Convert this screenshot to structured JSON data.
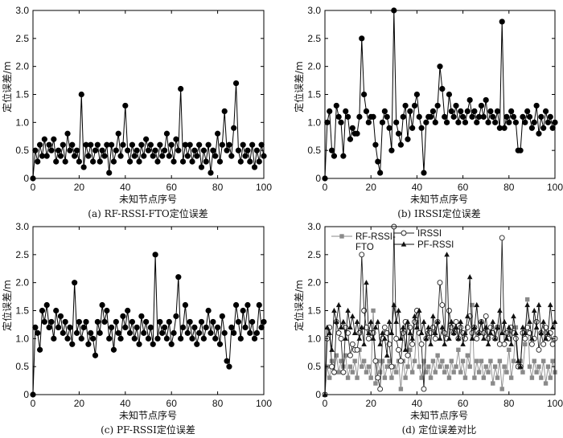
{
  "chart_data": [
    {
      "type": "line",
      "panel": "a",
      "caption": "(a) RF-RSSI-FTO定位误差",
      "xlabel": "未知节点序号",
      "ylabel": "定位误差/m",
      "xlim": [
        0,
        100
      ],
      "ylim": [
        0,
        3.0
      ],
      "xticks": [
        "0",
        "20",
        "40",
        "60",
        "80",
        "100"
      ],
      "yticks": [
        "0",
        "0.5",
        "1.0",
        "1.5",
        "2.0",
        "2.5",
        "3.0"
      ],
      "series": [
        {
          "name": "RF-RSSI-FTO",
          "marker": "filled-circle",
          "x": [
            0,
            1,
            2,
            3,
            4,
            5,
            6,
            7,
            8,
            9,
            10,
            11,
            12,
            13,
            14,
            15,
            16,
            17,
            18,
            19,
            20,
            21,
            22,
            23,
            24,
            25,
            26,
            27,
            28,
            29,
            30,
            31,
            32,
            33,
            34,
            35,
            36,
            37,
            38,
            39,
            40,
            41,
            42,
            43,
            44,
            45,
            46,
            47,
            48,
            49,
            50,
            51,
            52,
            53,
            54,
            55,
            56,
            57,
            58,
            59,
            60,
            61,
            62,
            63,
            64,
            65,
            66,
            67,
            68,
            69,
            70,
            71,
            72,
            73,
            74,
            75,
            76,
            77,
            78,
            79,
            80,
            81,
            82,
            83,
            84,
            85,
            86,
            87,
            88,
            89,
            90,
            91,
            92,
            93,
            94,
            95,
            96,
            97,
            98,
            99,
            100
          ],
          "values": [
            0,
            0.5,
            0.3,
            0.6,
            0.4,
            0.7,
            0.4,
            0.6,
            0.5,
            0.7,
            0.3,
            0.5,
            0.4,
            0.6,
            0.3,
            0.8,
            0.5,
            0.6,
            0.4,
            0.5,
            0.3,
            1.5,
            0.2,
            0.6,
            0.4,
            0.6,
            0.3,
            0.5,
            0.6,
            0.3,
            0.5,
            0.4,
            0.6,
            0.1,
            0.6,
            0.3,
            0.5,
            0.8,
            0.4,
            0.6,
            1.3,
            0.5,
            0.3,
            0.6,
            0.4,
            0.5,
            0.3,
            0.6,
            0.4,
            0.7,
            0.5,
            0.6,
            0.4,
            0.5,
            0.3,
            0.6,
            0.4,
            0.5,
            0.8,
            0.4,
            0.6,
            0.3,
            0.7,
            0.5,
            1.6,
            0.3,
            0.6,
            0.4,
            0.6,
            0.3,
            0.5,
            0.4,
            0.6,
            0.2,
            0.5,
            0.3,
            0.6,
            0.1,
            0.5,
            0.4,
            0.8,
            0.3,
            0.6,
            1.2,
            0.5,
            0.6,
            0.4,
            0.9,
            1.7,
            0.5,
            0.3,
            0.6,
            0.4,
            0.5,
            0.3,
            0.6,
            0.2,
            0.5,
            0.3,
            0.6,
            0.4
          ]
        }
      ]
    },
    {
      "type": "line",
      "panel": "b",
      "caption": "(b) IRSSI定位误差",
      "xlabel": "未知节点序号",
      "ylabel": "定位误差/m",
      "xlim": [
        0,
        100
      ],
      "ylim": [
        0,
        3.0
      ],
      "xticks": [
        "0",
        "20",
        "40",
        "60",
        "80",
        "100"
      ],
      "yticks": [
        "0",
        "0.5",
        "1.0",
        "1.5",
        "2.0",
        "2.5",
        "3.0"
      ],
      "series": [
        {
          "name": "IRSSI",
          "marker": "filled-circle",
          "x": [
            0,
            1,
            2,
            3,
            4,
            5,
            6,
            7,
            8,
            9,
            10,
            11,
            12,
            13,
            14,
            15,
            16,
            17,
            18,
            19,
            20,
            21,
            22,
            23,
            24,
            25,
            26,
            27,
            28,
            29,
            30,
            31,
            32,
            33,
            34,
            35,
            36,
            37,
            38,
            39,
            40,
            41,
            42,
            43,
            44,
            45,
            46,
            47,
            48,
            49,
            50,
            51,
            52,
            53,
            54,
            55,
            56,
            57,
            58,
            59,
            60,
            61,
            62,
            63,
            64,
            65,
            66,
            67,
            68,
            69,
            70,
            71,
            72,
            73,
            74,
            75,
            76,
            77,
            78,
            79,
            80,
            81,
            82,
            83,
            84,
            85,
            86,
            87,
            88,
            89,
            90,
            91,
            92,
            93,
            94,
            95,
            96,
            97,
            98,
            99,
            100
          ],
          "values": [
            0,
            1.0,
            1.2,
            0.5,
            0.4,
            1.3,
            1.1,
            1.0,
            0.4,
            1.2,
            1.1,
            0.7,
            0.9,
            0.8,
            0.8,
            1.1,
            2.5,
            1.5,
            1.2,
            1.0,
            1.1,
            1.1,
            0.6,
            0.3,
            0.1,
            1.0,
            1.2,
            1.1,
            0.9,
            0.5,
            3.0,
            1.0,
            0.8,
            0.6,
            1.1,
            1.3,
            0.7,
            1.2,
            0.9,
            1.3,
            1.5,
            1.1,
            0.9,
            0.1,
            1.0,
            1.1,
            1.1,
            1.2,
            1.0,
            1.3,
            2.0,
            1.6,
            1.1,
            1.0,
            1.5,
            1.2,
            1.1,
            1.3,
            1.0,
            1.2,
            1.1,
            1.0,
            1.2,
            1.4,
            1.1,
            1.2,
            1.0,
            1.1,
            1.3,
            1.1,
            1.4,
            1.0,
            1.2,
            1.1,
            1.0,
            1.2,
            0.9,
            2.8,
            0.9,
            1.1,
            1.0,
            1.2,
            1.1,
            1.0,
            0.5,
            0.5,
            1.1,
            1.0,
            1.2,
            1.1,
            0.9,
            1.0,
            1.3,
            0.8,
            1.1,
            0.9,
            1.2,
            1.0,
            1.1,
            0.9,
            1.0
          ]
        }
      ]
    },
    {
      "type": "line",
      "panel": "c",
      "caption": "(c) PF-RSSI定位误差",
      "xlabel": "未知节点序号",
      "ylabel": "定位误差/m",
      "xlim": [
        0,
        100
      ],
      "ylim": [
        0,
        3.0
      ],
      "xticks": [
        "0",
        "20",
        "40",
        "60",
        "80",
        "100"
      ],
      "yticks": [
        "0",
        "0.5",
        "1.0",
        "1.5",
        "2.0",
        "2.5",
        "3.0"
      ],
      "series": [
        {
          "name": "PF-RSSI",
          "marker": "filled-circle",
          "x": [
            0,
            1,
            2,
            3,
            4,
            5,
            6,
            7,
            8,
            9,
            10,
            11,
            12,
            13,
            14,
            15,
            16,
            17,
            18,
            19,
            20,
            21,
            22,
            23,
            24,
            25,
            26,
            27,
            28,
            29,
            30,
            31,
            32,
            33,
            34,
            35,
            36,
            37,
            38,
            39,
            40,
            41,
            42,
            43,
            44,
            45,
            46,
            47,
            48,
            49,
            50,
            51,
            52,
            53,
            54,
            55,
            56,
            57,
            58,
            59,
            60,
            61,
            62,
            63,
            64,
            65,
            66,
            67,
            68,
            69,
            70,
            71,
            72,
            73,
            74,
            75,
            76,
            77,
            78,
            79,
            80,
            81,
            82,
            83,
            84,
            85,
            86,
            87,
            88,
            89,
            90,
            91,
            92,
            93,
            94,
            95,
            96,
            97,
            98,
            99,
            100
          ],
          "values": [
            0,
            1.2,
            1.1,
            0.8,
            1.5,
            1.3,
            1.6,
            1.2,
            1.3,
            1.0,
            1.5,
            1.2,
            1.4,
            1.1,
            1.3,
            1.0,
            1.2,
            0.9,
            2.0,
            1.1,
            1.3,
            1.0,
            1.2,
            1.3,
            0.9,
            1.1,
            1.0,
            0.7,
            1.3,
            1.1,
            1.6,
            1.3,
            1.5,
            1.0,
            1.2,
            0.8,
            1.3,
            1.1,
            1.0,
            1.4,
            1.2,
            1.5,
            1.1,
            1.3,
            1.0,
            1.2,
            0.9,
            1.4,
            1.1,
            1.3,
            1.0,
            1.2,
            0.9,
            2.5,
            1.0,
            1.3,
            1.1,
            1.2,
            1.0,
            1.3,
            0.9,
            1.1,
            1.4,
            2.1,
            1.0,
            1.2,
            1.6,
            1.1,
            1.3,
            1.0,
            1.2,
            0.9,
            1.1,
            1.3,
            1.0,
            1.2,
            1.5,
            1.1,
            1.3,
            1.0,
            1.2,
            0.9,
            1.4,
            1.1,
            0.6,
            0.5,
            1.2,
            1.1,
            1.6,
            1.3,
            1.0,
            1.5,
            1.2,
            1.6,
            1.1,
            1.3,
            1.0,
            1.1,
            1.6,
            1.2,
            1.3
          ]
        }
      ]
    },
    {
      "type": "line",
      "panel": "d",
      "caption": "(d) 定位误差对比",
      "xlabel": "未知节点序号",
      "ylabel": "定位误差/m",
      "xlim": [
        0,
        100
      ],
      "ylim": [
        0,
        3.0
      ],
      "xticks": [
        "0",
        "20",
        "40",
        "60",
        "80",
        "100"
      ],
      "yticks": [
        "0",
        "0.5",
        "1.0",
        "1.5",
        "2.0",
        "2.5",
        "3.0"
      ],
      "legend_position": "top-left",
      "series": [
        {
          "name": "RF-RSSI-FTO",
          "legend_lines": [
            "RF-RSSI-",
            "FTO"
          ],
          "marker": "filled-square",
          "color": "#8a8a8a",
          "source_panel": 0
        },
        {
          "name": "IRSSI",
          "legend_lines": [
            "IRSSI"
          ],
          "marker": "open-circle",
          "color": "#222222",
          "source_panel": 1
        },
        {
          "name": "PF-RSSI",
          "legend_lines": [
            "PF-RSSI"
          ],
          "marker": "filled-triangle",
          "color": "#111111",
          "source_panel": 2
        }
      ]
    }
  ]
}
